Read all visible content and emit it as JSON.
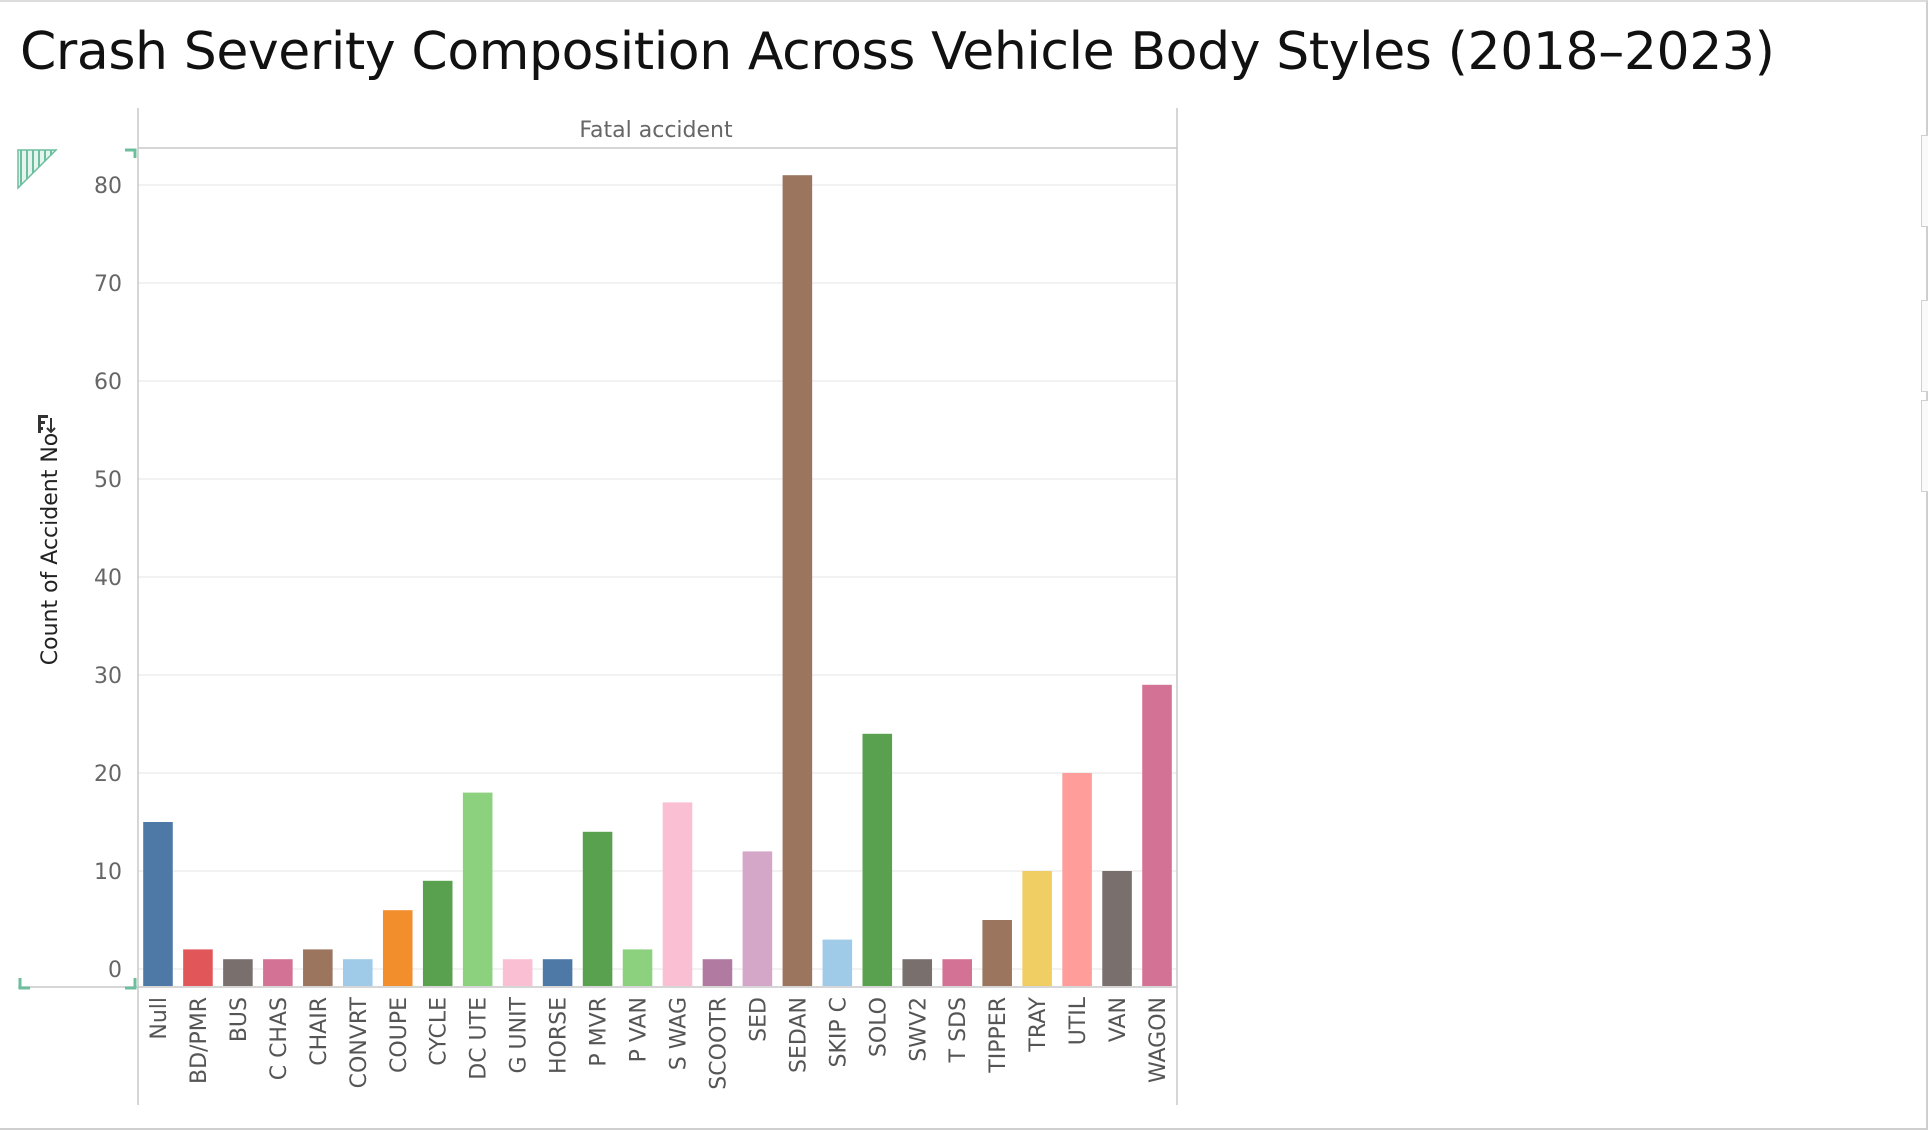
{
  "title": "Crash Severity Composition Across Vehicle Body Styles (2018–2023)",
  "chart_data": {
    "type": "bar",
    "panel_header": "Fatal accident",
    "ylabel": "Count of Accident No",
    "ylim": [
      0,
      85
    ],
    "yticks": [
      0,
      10,
      20,
      30,
      40,
      50,
      60,
      70,
      80
    ],
    "grid": true,
    "categories": [
      "Null",
      "BD/PMR",
      "BUS",
      "C CHAS",
      "CHAIR",
      "CONVRT",
      "COUPE",
      "CYCLE",
      "DC UTE",
      "G UNIT",
      "HORSE",
      "P MVR",
      "P VAN",
      "S WAG",
      "SCOOTR",
      "SED",
      "SEDAN",
      "SKIP C",
      "SOLO",
      "SWV2",
      "T SDS",
      "TIPPER",
      "TRAY",
      "UTIL",
      "VAN",
      "WAGON"
    ],
    "values": [
      15,
      2,
      1,
      1,
      2,
      1,
      6,
      9,
      18,
      1,
      1,
      14,
      2,
      17,
      1,
      12,
      81,
      3,
      24,
      1,
      1,
      5,
      10,
      20,
      10,
      29
    ],
    "colors": [
      "#4e79a7",
      "#e15759",
      "#79706e",
      "#d37295",
      "#9c755f",
      "#a0cbe8",
      "#f28e2b",
      "#59a14f",
      "#8cd17d",
      "#fabfd2",
      "#4e79a7",
      "#59a14f",
      "#8cd17d",
      "#fabfd2",
      "#b07aa1",
      "#d4a6c8",
      "#9c755f",
      "#a0cbe8",
      "#59a14f",
      "#79706e",
      "#d37295",
      "#9c755f",
      "#f1ce63",
      "#ff9d9a",
      "#79706e",
      "#d37295"
    ]
  }
}
